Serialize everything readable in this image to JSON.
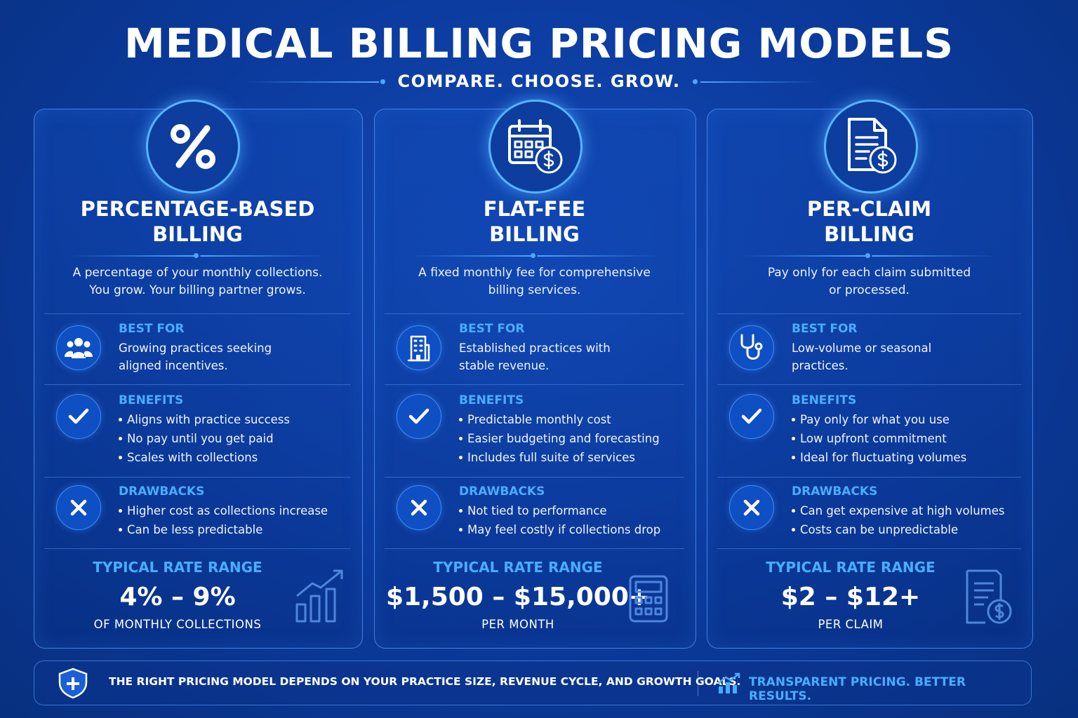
{
  "header": {
    "title": "MEDICAL BILLING PRICING MODELS",
    "subtitle": "COMPARE. CHOOSE. GROW."
  },
  "cards": [
    {
      "title_lines": [
        "PERCENTAGE-BASED",
        "BILLING"
      ],
      "description_lines": [
        "A percentage of your monthly collections.",
        "You grow. Your billing partner grows."
      ],
      "best_for": {
        "label": "BEST FOR",
        "lines": [
          "Growing practices seeking",
          "aligned incentives."
        ]
      },
      "benefits": {
        "label": "BENEFITS",
        "items": [
          "Aligns with practice success",
          "No pay until you get paid",
          "Scales with collections"
        ]
      },
      "drawbacks": {
        "label": "DRAWBACKS",
        "items": [
          "Higher cost as collections increase",
          "Can be less predictable"
        ]
      },
      "rate": {
        "label": "TYPICAL RATE RANGE",
        "value": "4% – 9%",
        "unit": "OF MONTHLY COLLECTIONS"
      }
    },
    {
      "title_lines": [
        "FLAT-FEE",
        "BILLING"
      ],
      "description_lines": [
        "A fixed monthly fee for comprehensive",
        "billing services."
      ],
      "best_for": {
        "label": "BEST FOR",
        "lines": [
          "Established practices with",
          "stable revenue."
        ]
      },
      "benefits": {
        "label": "BENEFITS",
        "items": [
          "Predictable monthly cost",
          "Easier budgeting and forecasting",
          "Includes full suite of services"
        ]
      },
      "drawbacks": {
        "label": "DRAWBACKS",
        "items": [
          "Not tied to performance",
          "May feel costly if collections drop"
        ]
      },
      "rate": {
        "label": "TYPICAL RATE RANGE",
        "value": "$1,500 – $15,000+",
        "unit": "PER MONTH"
      }
    },
    {
      "title_lines": [
        "PER-CLAIM",
        "BILLING"
      ],
      "description_lines": [
        "Pay only for each claim submitted",
        "or processed."
      ],
      "best_for": {
        "label": "BEST FOR",
        "lines": [
          "Low-volume or seasonal",
          "practices."
        ]
      },
      "benefits": {
        "label": "BENEFITS",
        "items": [
          "Pay only for what you use",
          "Low upfront commitment",
          "Ideal for fluctuating volumes"
        ]
      },
      "drawbacks": {
        "label": "DRAWBACKS",
        "items": [
          "Can get expensive at high volumes",
          "Costs can be unpredictable"
        ]
      },
      "rate": {
        "label": "TYPICAL RATE RANGE",
        "value": "$2 – $12+",
        "unit": "PER CLAIM"
      }
    }
  ],
  "footer": {
    "note": "THE RIGHT PRICING MODEL DEPENDS ON YOUR PRACTICE SIZE, REVENUE CYCLE, AND GROWTH GOALS.",
    "tagline": "TRANSPARENT PRICING. BETTER RESULTS."
  }
}
